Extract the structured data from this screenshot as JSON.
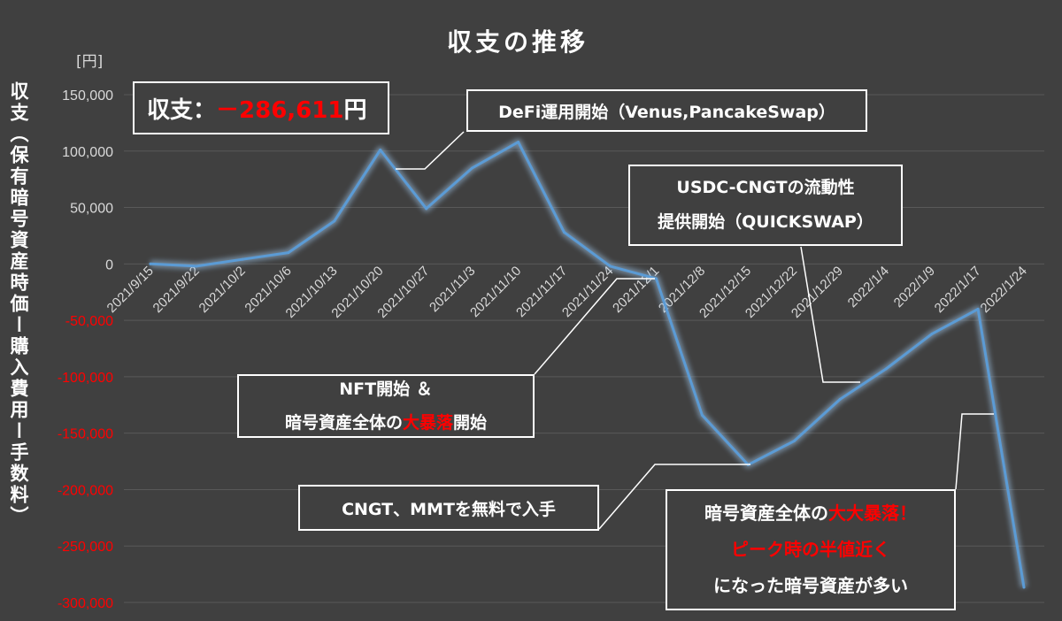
{
  "colors": {
    "background": "#404040",
    "text": "#ffffff",
    "tick_text": "#d9d9d9",
    "negative": "#ff0000",
    "highlight": "#ff0000",
    "line": "#5b9bd5",
    "line_glow": "#9dc3e6",
    "grid": "#595959",
    "box_border": "#ffffff"
  },
  "annotations": {
    "summary": {
      "lines": [
        [
          {
            "text": "収支："
          },
          {
            "text": "－286,611",
            "highlight": true
          },
          {
            "text": "円"
          }
        ]
      ]
    },
    "defi": {
      "lines": [
        [
          {
            "text": "DeFi運用開始（Venus,PancakeSwap）"
          }
        ]
      ]
    },
    "usdc": {
      "lines": [
        [
          {
            "text": "USDC-CNGTの流動性"
          }
        ],
        [
          {
            "text": "提供開始（QUICKSWAP）"
          }
        ]
      ]
    },
    "nft": {
      "lines": [
        [
          {
            "text": "NFT開始 ＆"
          }
        ],
        [
          {
            "text": "暗号資産全体の"
          },
          {
            "text": "大暴落",
            "highlight": true
          },
          {
            "text": "開始"
          }
        ]
      ]
    },
    "cngt": {
      "lines": [
        [
          {
            "text": "CNGT、MMTを無料で入手"
          }
        ]
      ]
    },
    "crash": {
      "lines": [
        [
          {
            "text": "暗号資産全体の"
          },
          {
            "text": "大大暴落！",
            "highlight": true
          }
        ],
        [
          {
            "text": "ピーク時の半値近く",
            "highlight": true
          }
        ],
        [
          {
            "text": "になった暗号資産が多い"
          }
        ]
      ]
    }
  },
  "chart_data": {
    "type": "line",
    "title": "収支の推移",
    "ylabel": "収支（保有暗号資産時価ー購入費用ー手数料）",
    "y_unit": "[円]",
    "categories": [
      "2021/9/15",
      "2021/9/22",
      "2021/10/2",
      "2021/10/6",
      "2021/10/13",
      "2021/10/20",
      "2021/10/27",
      "2021/11/3",
      "2021/11/10",
      "2021/11/17",
      "2021/11/24",
      "2021/12/1",
      "2021/12/8",
      "2021/12/15",
      "2021/12/22",
      "2021/12/29",
      "2022/1/4",
      "2022/1/9",
      "2022/1/17",
      "2022/1/24"
    ],
    "series": [
      {
        "values": [
          0,
          -2000,
          4000,
          10000,
          38000,
          101000,
          49000,
          85000,
          108000,
          28000,
          -2000,
          -13000,
          -134000,
          -178000,
          -157000,
          -120000,
          -93000,
          -62000,
          -40000,
          -286611
        ]
      }
    ],
    "ylim": [
      -300000,
      150000
    ],
    "yticks": [
      150000,
      100000,
      50000,
      0,
      -50000,
      -100000,
      -150000,
      -200000,
      -250000,
      -300000
    ],
    "ytick_labels": [
      "150,000",
      "100,000",
      "50,000",
      "0",
      "-50,000",
      "-100,000",
      "-150,000",
      "-200,000",
      "-250,000",
      "-300,000"
    ],
    "grid": true
  }
}
